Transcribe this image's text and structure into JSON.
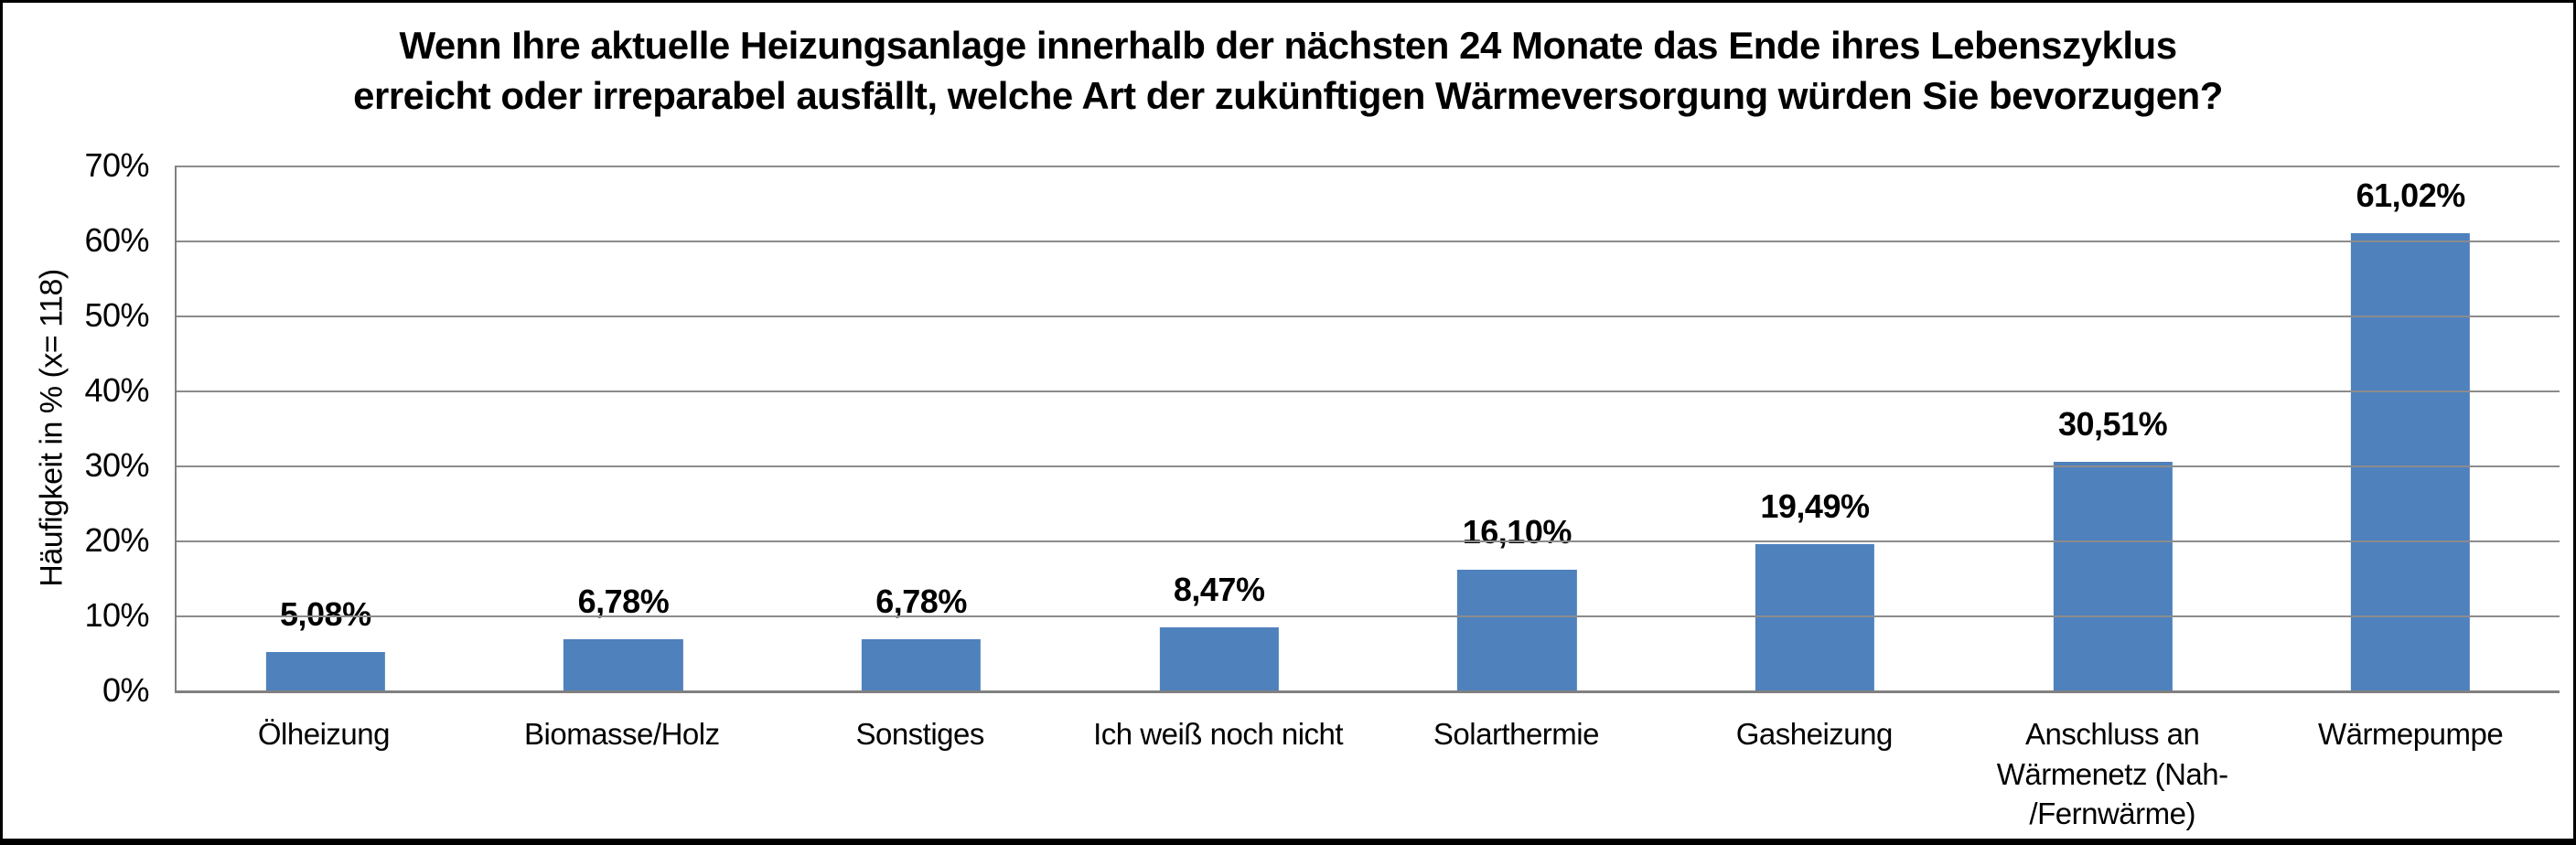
{
  "chart_data": {
    "type": "bar",
    "title": "Wenn Ihre aktuelle Heizungsanlage innerhalb der nächsten 24 Monate das Ende ihres Lebenszyklus erreicht oder irreparabel ausfällt, welche Art der zukünftigen Wärmeversorgung würden Sie bevorzugen?",
    "xlabel": "",
    "ylabel": "Häufigkeit in % (x= 118)",
    "categories": [
      "Ölheizung",
      "Biomasse/Holz",
      "Sonstiges",
      "Ich weiß noch nicht",
      "Solarthermie",
      "Gasheizung",
      "Anschluss an Wärmenetz (Nah- /Fernwärme)",
      "Wärmepumpe"
    ],
    "values": [
      5.08,
      6.78,
      6.78,
      8.47,
      16.1,
      19.49,
      30.51,
      61.02
    ],
    "value_labels": [
      "5,08%",
      "6,78%",
      "6,78%",
      "8,47%",
      "16,10%",
      "19,49%",
      "30,51%",
      "61,02%"
    ],
    "ylim": [
      0,
      70
    ],
    "ytick_values": [
      0,
      10,
      20,
      30,
      40,
      50,
      60,
      70
    ],
    "ytick_labels": [
      "0%",
      "10%",
      "20%",
      "30%",
      "40%",
      "50%",
      "60%",
      "70%"
    ],
    "grid": true,
    "legend": "none",
    "bar_color": "#4F81BD",
    "gridline_color": "#8C8C8C",
    "axis_color": "#808080",
    "text_color": "#000000"
  }
}
